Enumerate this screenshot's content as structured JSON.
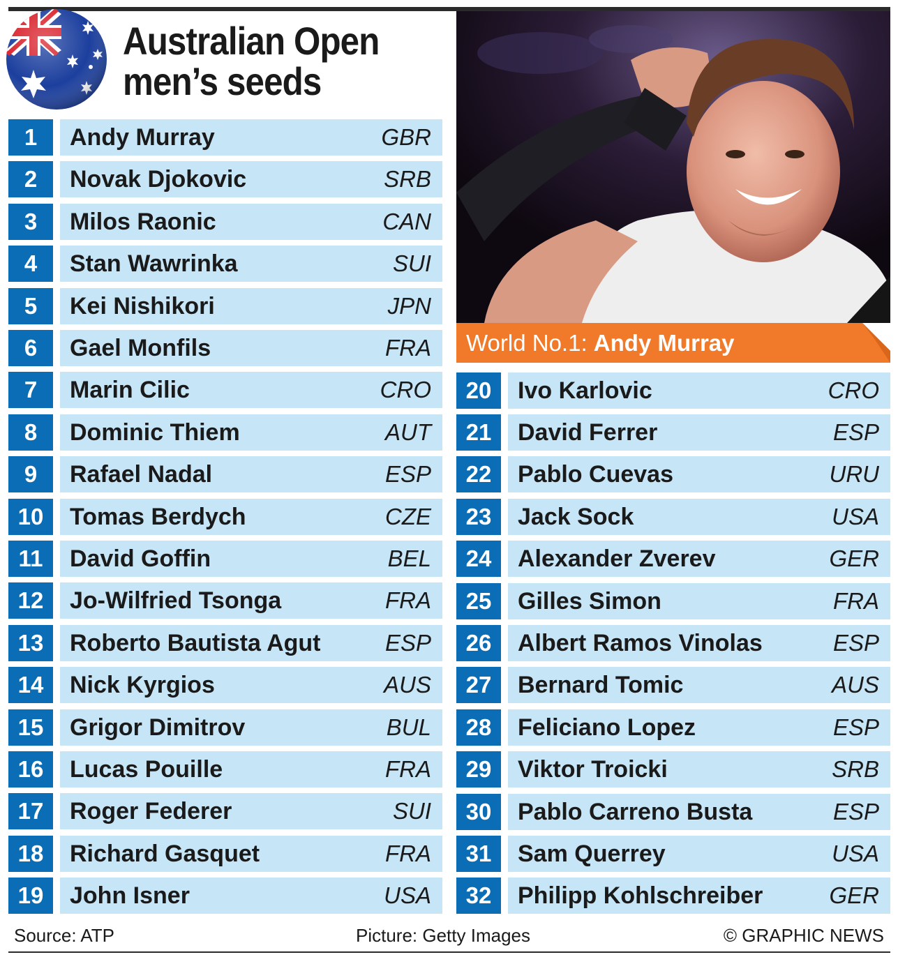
{
  "title": {
    "line1": "Australian Open",
    "line2": "men’s seeds"
  },
  "flag": {
    "name": "australia-flag",
    "colors": {
      "blue": "#1c3f9e",
      "red": "#d8202a",
      "white": "#ffffff"
    }
  },
  "photo": {
    "subject": "Andy Murray celebrating"
  },
  "caption": {
    "prefix": "World No.1: ",
    "name": "Andy Murray",
    "color": "#f07a2a"
  },
  "colors": {
    "number_bg": "#0a6db5",
    "row_bg": "#c6e5f6"
  },
  "seeds_left": [
    {
      "seed": "1",
      "name": "Andy Murray",
      "country": "GBR"
    },
    {
      "seed": "2",
      "name": "Novak Djokovic",
      "country": "SRB"
    },
    {
      "seed": "3",
      "name": "Milos Raonic",
      "country": "CAN"
    },
    {
      "seed": "4",
      "name": "Stan Wawrinka",
      "country": "SUI"
    },
    {
      "seed": "5",
      "name": "Kei Nishikori",
      "country": "JPN"
    },
    {
      "seed": "6",
      "name": "Gael Monfils",
      "country": "FRA"
    },
    {
      "seed": "7",
      "name": "Marin Cilic",
      "country": "CRO"
    },
    {
      "seed": "8",
      "name": "Dominic Thiem",
      "country": "AUT"
    },
    {
      "seed": "9",
      "name": "Rafael Nadal",
      "country": "ESP"
    },
    {
      "seed": "10",
      "name": "Tomas Berdych",
      "country": "CZE"
    },
    {
      "seed": "11",
      "name": "David Goffin",
      "country": "BEL"
    },
    {
      "seed": "12",
      "name": "Jo-Wilfried Tsonga",
      "country": "FRA"
    },
    {
      "seed": "13",
      "name": "Roberto Bautista Agut",
      "country": "ESP"
    },
    {
      "seed": "14",
      "name": "Nick Kyrgios",
      "country": "AUS"
    },
    {
      "seed": "15",
      "name": "Grigor Dimitrov",
      "country": "BUL"
    },
    {
      "seed": "16",
      "name": "Lucas Pouille",
      "country": "FRA"
    },
    {
      "seed": "17",
      "name": "Roger Federer",
      "country": "SUI"
    },
    {
      "seed": "18",
      "name": "Richard Gasquet",
      "country": "FRA"
    },
    {
      "seed": "19",
      "name": "John Isner",
      "country": "USA"
    }
  ],
  "seeds_right": [
    {
      "seed": "20",
      "name": "Ivo Karlovic",
      "country": "CRO"
    },
    {
      "seed": "21",
      "name": "David Ferrer",
      "country": "ESP"
    },
    {
      "seed": "22",
      "name": "Pablo Cuevas",
      "country": "URU"
    },
    {
      "seed": "23",
      "name": "Jack Sock",
      "country": "USA"
    },
    {
      "seed": "24",
      "name": "Alexander Zverev",
      "country": "GER"
    },
    {
      "seed": "25",
      "name": "Gilles Simon",
      "country": "FRA"
    },
    {
      "seed": "26",
      "name": "Albert Ramos Vinolas",
      "country": "ESP"
    },
    {
      "seed": "27",
      "name": "Bernard Tomic",
      "country": "AUS"
    },
    {
      "seed": "28",
      "name": "Feliciano Lopez",
      "country": "ESP"
    },
    {
      "seed": "29",
      "name": "Viktor Troicki",
      "country": "SRB"
    },
    {
      "seed": "30",
      "name": "Pablo Carreno Busta",
      "country": "ESP"
    },
    {
      "seed": "31",
      "name": "Sam Querrey",
      "country": "USA"
    },
    {
      "seed": "32",
      "name": "Philipp Kohlschreiber",
      "country": "GER"
    }
  ],
  "footer": {
    "source": "Source: ATP",
    "picture": "Picture: Getty Images",
    "credit": "© GRAPHIC NEWS"
  }
}
